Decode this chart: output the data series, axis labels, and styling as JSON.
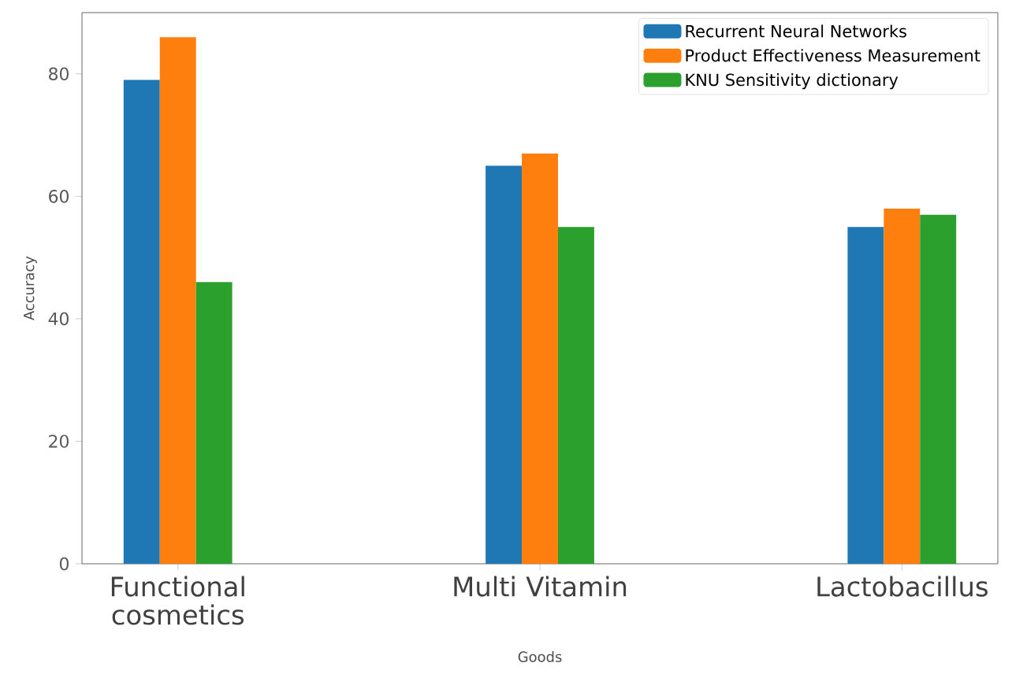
{
  "chart_data": {
    "type": "bar",
    "xlabel": "Goods",
    "ylabel": "Accuracy",
    "categories": [
      "Functional cosmetics",
      "Multi Vitamin",
      "Lactobacillus"
    ],
    "series": [
      {
        "name": "Recurrent Neural Networks",
        "color": "#1f77b4",
        "values": [
          79,
          65,
          55
        ]
      },
      {
        "name": "Product Effectiveness Measurement",
        "color": "#ff7f0e",
        "values": [
          86,
          67,
          58
        ]
      },
      {
        "name": "KNU Sensitivity dictionary",
        "color": "#2ca02c",
        "values": [
          46,
          55,
          57
        ]
      }
    ],
    "ylim": [
      0,
      90
    ],
    "yticks": [
      0,
      20,
      40,
      60,
      80
    ],
    "grid": false,
    "legend": "top right"
  }
}
